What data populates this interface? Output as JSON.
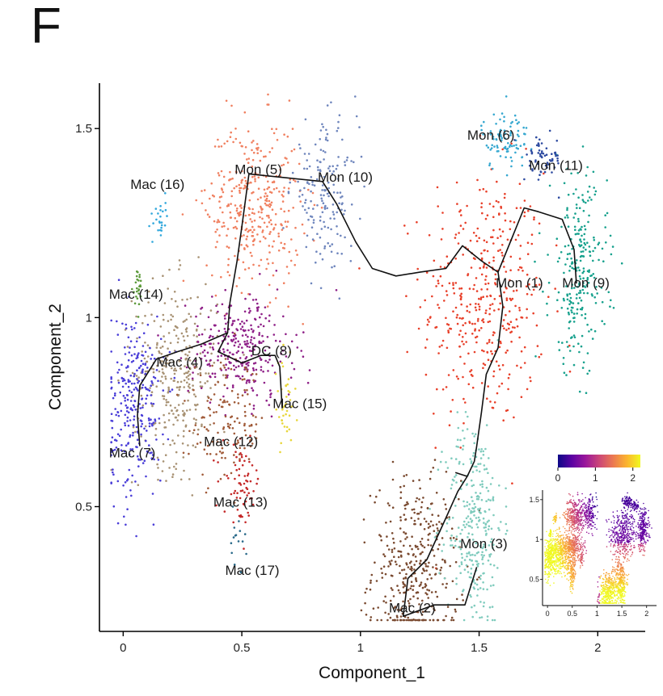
{
  "panel_label": "F",
  "chart_data": {
    "type": "scatter",
    "xlabel": "Component_1",
    "ylabel": "Component_2",
    "xlim": [
      -0.1,
      2.2
    ],
    "ylim": [
      0.17,
      1.62
    ],
    "x_ticks": [
      0,
      0.5,
      1,
      1.5,
      2
    ],
    "x_tick_labels": [
      "0",
      "0.5",
      "1",
      "1.5",
      "2"
    ],
    "y_ticks": [
      0.5,
      1,
      1.5
    ],
    "y_tick_labels": [
      "0.5",
      "1",
      "1.5"
    ],
    "grid": false,
    "clusters": [
      {
        "label": "Mon (1)",
        "color": "#e8402a",
        "center": [
          1.52,
          1.05
        ],
        "spread": [
          0.13,
          0.17
        ],
        "n": 420,
        "label_pos": [
          1.57,
          1.08
        ]
      },
      {
        "label": "Mac (2)",
        "color": "#7a4a30",
        "center": [
          1.23,
          0.33
        ],
        "spread": [
          0.09,
          0.12
        ],
        "n": 380,
        "label_pos": [
          1.12,
          0.22
        ]
      },
      {
        "label": "Mon (3)",
        "color": "#7fcbbd",
        "center": [
          1.48,
          0.46
        ],
        "spread": [
          0.06,
          0.14
        ],
        "n": 300,
        "label_pos": [
          1.42,
          0.39
        ]
      },
      {
        "label": "Mac (4)",
        "color": "#a89274",
        "center": [
          0.22,
          0.85
        ],
        "spread": [
          0.09,
          0.12
        ],
        "n": 320,
        "label_pos": [
          0.14,
          0.87
        ]
      },
      {
        "label": "Mon (5)",
        "color": "#f08060",
        "center": [
          0.55,
          1.3
        ],
        "spread": [
          0.1,
          0.11
        ],
        "n": 360,
        "label_pos": [
          0.47,
          1.38
        ]
      },
      {
        "label": "Mon (6)",
        "color": "#36a8d0",
        "center": [
          1.61,
          1.47
        ],
        "spread": [
          0.05,
          0.04
        ],
        "n": 90,
        "label_pos": [
          1.45,
          1.47
        ]
      },
      {
        "label": "Mac (7)",
        "color": "#4a3ed8",
        "center": [
          0.05,
          0.77
        ],
        "spread": [
          0.06,
          0.12
        ],
        "n": 280,
        "label_pos": [
          -0.06,
          0.63
        ]
      },
      {
        "label": "DC (8)",
        "color": "#8e1f87",
        "center": [
          0.5,
          0.92
        ],
        "spread": [
          0.11,
          0.07
        ],
        "n": 300,
        "label_pos": [
          0.54,
          0.9
        ]
      },
      {
        "label": "Mon (9)",
        "color": "#17a18d",
        "center": [
          1.92,
          1.12
        ],
        "spread": [
          0.06,
          0.13
        ],
        "n": 260,
        "label_pos": [
          1.85,
          1.08
        ]
      },
      {
        "label": "Mon (10)",
        "color": "#6f86bd",
        "center": [
          0.85,
          1.33
        ],
        "spread": [
          0.07,
          0.09
        ],
        "n": 170,
        "label_pos": [
          0.82,
          1.36
        ]
      },
      {
        "label": "Mon (11)",
        "color": "#2d4aa0",
        "center": [
          1.77,
          1.42
        ],
        "spread": [
          0.04,
          0.03
        ],
        "n": 60,
        "label_pos": [
          1.71,
          1.39
        ]
      },
      {
        "label": "Mac (12)",
        "color": "#a05a38",
        "center": [
          0.44,
          0.72
        ],
        "spread": [
          0.08,
          0.08
        ],
        "n": 140,
        "label_pos": [
          0.34,
          0.66
        ]
      },
      {
        "label": "Mac (13)",
        "color": "#c42828",
        "center": [
          0.5,
          0.56
        ],
        "spread": [
          0.04,
          0.05
        ],
        "n": 70,
        "label_pos": [
          0.38,
          0.5
        ]
      },
      {
        "label": "Mac (14)",
        "color": "#5c9a3a",
        "center": [
          0.06,
          1.08
        ],
        "spread": [
          0.01,
          0.03
        ],
        "n": 25,
        "label_pos": [
          -0.06,
          1.05
        ]
      },
      {
        "label": "Mac (15)",
        "color": "#e8d63a",
        "center": [
          0.68,
          0.76
        ],
        "spread": [
          0.02,
          0.06
        ],
        "n": 40,
        "label_pos": [
          0.63,
          0.76
        ]
      },
      {
        "label": "Mac (16)",
        "color": "#32a8dc",
        "center": [
          0.16,
          1.27
        ],
        "spread": [
          0.015,
          0.03
        ],
        "n": 25,
        "label_pos": [
          0.03,
          1.34
        ]
      },
      {
        "label": "Mac (17)",
        "color": "#2a6a8a",
        "center": [
          0.48,
          0.41
        ],
        "spread": [
          0.02,
          0.03
        ],
        "n": 15,
        "label_pos": [
          0.43,
          0.32
        ]
      }
    ],
    "trajectory": [
      [
        [
          0.07,
          0.66
        ],
        [
          0.06,
          0.74
        ],
        [
          0.07,
          0.82
        ],
        [
          0.14,
          0.89
        ],
        [
          0.23,
          0.91
        ],
        [
          0.33,
          0.93
        ],
        [
          0.44,
          0.96
        ],
        [
          0.4,
          0.91
        ],
        [
          0.5,
          0.88
        ],
        [
          0.58,
          0.9
        ],
        [
          0.64,
          0.9
        ],
        [
          0.66,
          0.87
        ],
        [
          0.67,
          0.76
        ]
      ],
      [
        [
          0.44,
          0.96
        ],
        [
          0.45,
          1.04
        ],
        [
          0.48,
          1.15
        ],
        [
          0.5,
          1.24
        ],
        [
          0.53,
          1.38
        ],
        [
          0.84,
          1.36
        ],
        [
          0.9,
          1.3
        ],
        [
          0.98,
          1.2
        ],
        [
          1.05,
          1.13
        ],
        [
          1.15,
          1.11
        ],
        [
          1.25,
          1.12
        ],
        [
          1.36,
          1.13
        ],
        [
          1.43,
          1.19
        ],
        [
          1.51,
          1.15
        ],
        [
          1.58,
          1.12
        ]
      ],
      [
        [
          1.58,
          1.12
        ],
        [
          1.69,
          1.29
        ],
        [
          1.75,
          1.28
        ],
        [
          1.85,
          1.26
        ],
        [
          1.9,
          1.18
        ],
        [
          1.91,
          1.09
        ]
      ],
      [
        [
          1.58,
          1.12
        ],
        [
          1.6,
          1.03
        ],
        [
          1.58,
          0.92
        ],
        [
          1.53,
          0.85
        ],
        [
          1.51,
          0.75
        ],
        [
          1.49,
          0.66
        ],
        [
          1.48,
          0.62
        ],
        [
          1.45,
          0.58
        ],
        [
          1.41,
          0.54
        ],
        [
          1.36,
          0.47
        ],
        [
          1.28,
          0.36
        ],
        [
          1.2,
          0.31
        ],
        [
          1.18,
          0.21
        ],
        [
          1.31,
          0.24
        ],
        [
          1.44,
          0.24
        ],
        [
          1.49,
          0.34
        ]
      ],
      [
        [
          1.45,
          0.58
        ],
        [
          1.4,
          0.59
        ]
      ]
    ],
    "inset": {
      "colorbar_ticks": [
        0,
        1,
        2
      ],
      "colorbar_tick_labels": [
        "0",
        "1",
        "2"
      ],
      "colorbar_range": [
        0,
        2.2
      ],
      "colormap": [
        "#0d0887",
        "#5b02a3",
        "#9a179b",
        "#cb4678",
        "#eb7852",
        "#fbb32f",
        "#f0f921"
      ],
      "x_ticks": [
        0,
        0.5,
        1,
        1.5,
        2
      ],
      "x_tick_labels": [
        "0",
        "0.5",
        "1",
        "1.5",
        "2"
      ],
      "y_ticks": [
        0.5,
        1,
        1.5
      ],
      "y_tick_labels": [
        "0.5",
        "1",
        "1.5"
      ]
    }
  }
}
